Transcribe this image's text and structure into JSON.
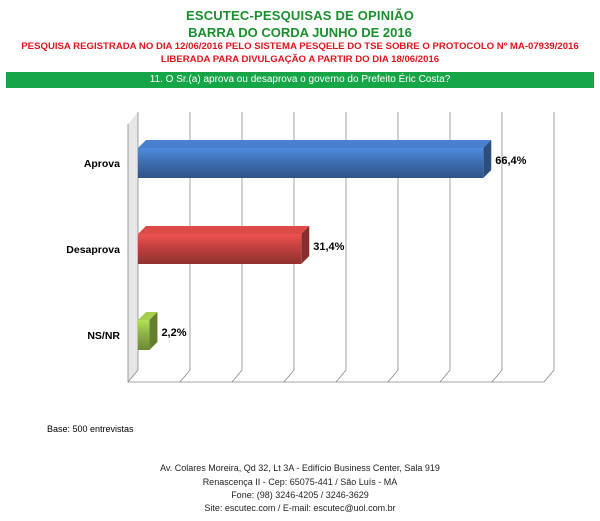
{
  "header": {
    "title": "ESCUTEC-PESQUISAS DE OPINIÃO",
    "subtitle": "BARRA DO CORDA JUNHO DE 2016",
    "registration": "PESQUISA REGISTRADA NO DIA 12/06/2016 PELO SISTEMA PESQELE DO TSE SOBRE O PROTOCOLO Nº MA-07939/2016",
    "release": "LIBERADA PARA DIVULGAÇÃO A PARTIR DO DIA 18/06/2016"
  },
  "question": "11. O Sr.(a) aprova ou desaprova o governo do Prefeito Éric Costa?",
  "base_note": "Base: 500 entrevistas",
  "footer": {
    "line1": "Av. Colares Moreira, Qd 32, Lt 3A - Edifício Business Center, Sala 919",
    "line2": "Renascença II - Cep: 65075-441 / São Luís - MA",
    "line3": "Fone: (98) 3246-4205 / 3246-3629",
    "line4": "Site: escutec.com / E-mail: escutec@uol.com.br"
  },
  "colors": {
    "header_green": "#1a8f2e",
    "header_red": "#e0141c",
    "question_bar": "#16a648"
  },
  "chart_data": {
    "type": "bar",
    "orientation": "horizontal",
    "categories": [
      "Aprova",
      "Desaprova",
      "NS/NR"
    ],
    "values": [
      66.4,
      31.4,
      2.2
    ],
    "value_labels": [
      "66,4%",
      "31,4%",
      "2,2%"
    ],
    "colors": [
      "#3f6fb4",
      "#c0413f",
      "#8fb445"
    ],
    "xlim": [
      0,
      80
    ],
    "grid": true,
    "legend": "none"
  }
}
